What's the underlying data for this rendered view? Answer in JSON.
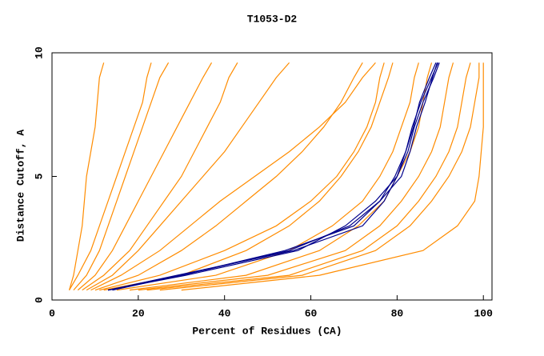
{
  "chart_data": {
    "type": "line",
    "title": "T1053-D2",
    "x_label": "Percent of Residues (CA)",
    "y_label": "Distance Cutoff, A",
    "xlim": [
      0,
      102
    ],
    "ylim": [
      0,
      10
    ],
    "xticks": [
      0,
      20,
      40,
      60,
      80,
      100
    ],
    "yticks": [
      0,
      5,
      10
    ],
    "series": [
      {
        "color": "#ff8c00",
        "x": [
          4,
          5,
          6,
          7,
          7.5,
          8,
          9,
          10,
          10.5,
          11,
          12
        ],
        "values": [
          0.4,
          1,
          2,
          3,
          4,
          5,
          6,
          7,
          8,
          9,
          9.6
        ]
      },
      {
        "color": "#ff8c00",
        "x": [
          5,
          8,
          11,
          13,
          15,
          17,
          19,
          21,
          23,
          25,
          27
        ],
        "values": [
          0.4,
          1,
          2,
          3,
          4,
          5,
          6,
          7,
          8,
          9,
          9.6
        ]
      },
      {
        "color": "#ff8c00",
        "x": [
          6,
          10,
          14,
          17,
          20,
          23,
          26,
          29,
          32,
          35,
          37
        ],
        "values": [
          0.4,
          1,
          2,
          3,
          4,
          5,
          6,
          7,
          8,
          9,
          9.6
        ]
      },
      {
        "color": "#ff8c00",
        "x": [
          8,
          14,
          20,
          25,
          30,
          35,
          40,
          44,
          48,
          52,
          55
        ],
        "values": [
          0.4,
          1,
          2,
          3,
          4,
          5,
          6,
          7,
          8,
          9,
          9.6
        ]
      },
      {
        "color": "#ff8c00",
        "x": [
          10,
          20,
          30,
          38,
          45,
          52,
          58,
          63,
          67,
          70,
          72
        ],
        "values": [
          0.4,
          1,
          2,
          3,
          4,
          5,
          6,
          7,
          8,
          9,
          9.6
        ]
      },
      {
        "color": "#ff8c00",
        "x": [
          12,
          30,
          45,
          55,
          62,
          67,
          71,
          74,
          76,
          78,
          79
        ],
        "values": [
          0.4,
          1,
          2,
          3,
          4,
          5,
          6,
          7,
          8,
          9,
          9.6
        ]
      },
      {
        "color": "#ff8c00",
        "x": [
          15,
          38,
          55,
          65,
          72,
          76,
          79,
          81,
          83,
          84,
          85
        ],
        "values": [
          0.4,
          1,
          2,
          3,
          4,
          5,
          6,
          7,
          8,
          9,
          9.6
        ]
      },
      {
        "color": "#ff8c00",
        "x": [
          18,
          45,
          62,
          71,
          77,
          80,
          83,
          85,
          86,
          87,
          88
        ],
        "values": [
          0.4,
          1,
          2,
          3,
          4,
          5,
          6,
          7,
          8,
          9,
          9.6
        ]
      },
      {
        "color": "#ff8c00",
        "x": [
          20,
          50,
          68,
          76,
          81,
          85,
          88,
          90,
          91,
          92,
          93
        ],
        "values": [
          0.4,
          1,
          2,
          3,
          4,
          5,
          6,
          7,
          8,
          9,
          9.6
        ]
      },
      {
        "color": "#ff8c00",
        "x": [
          22,
          55,
          72,
          80,
          85,
          89,
          92,
          94,
          95,
          96,
          97
        ],
        "values": [
          0.4,
          1,
          2,
          3,
          4,
          5,
          6,
          7,
          8,
          9,
          9.6
        ]
      },
      {
        "color": "#ff8c00",
        "x": [
          25,
          58,
          75,
          83,
          88,
          92,
          95,
          97,
          98,
          99,
          99
        ],
        "values": [
          0.4,
          1,
          2,
          3,
          4,
          5,
          6,
          7,
          8,
          9,
          9.6
        ]
      },
      {
        "color": "#ff8c00",
        "x": [
          30,
          62,
          86,
          94,
          98,
          99,
          99.5,
          100,
          100,
          100,
          100
        ],
        "values": [
          0.4,
          1,
          2,
          3,
          4,
          5,
          6,
          7,
          8,
          9,
          9.6
        ]
      },
      {
        "color": "#ff8c00",
        "x": [
          4,
          6,
          9,
          11,
          13,
          15,
          17,
          19,
          21,
          22,
          23
        ],
        "values": [
          0.4,
          1,
          2,
          3,
          4,
          5,
          6,
          7,
          8,
          9,
          9.6
        ]
      },
      {
        "color": "#ff8c00",
        "x": [
          7,
          12,
          18,
          22,
          26,
          30,
          33,
          36,
          39,
          41,
          43
        ],
        "values": [
          0.4,
          1,
          2,
          3,
          4,
          5,
          6,
          7,
          8,
          9,
          9.6
        ]
      },
      {
        "color": "#ff8c00",
        "x": [
          9,
          16,
          25,
          32,
          39,
          47,
          55,
          62,
          68,
          72,
          75
        ],
        "values": [
          0.4,
          1,
          2,
          3,
          4,
          5,
          6,
          7,
          8,
          9,
          9.6
        ]
      },
      {
        "color": "#ff8c00",
        "x": [
          11,
          25,
          40,
          52,
          60,
          66,
          70,
          73,
          75,
          76,
          77
        ],
        "values": [
          0.4,
          1,
          2,
          3,
          4,
          5,
          6,
          7,
          8,
          9,
          9.6
        ]
      },
      {
        "color": "#00008b",
        "x": [
          13,
          30,
          55,
          69,
          76,
          79.5,
          82,
          83.5,
          85.5,
          88,
          89.5
        ],
        "values": [
          0.4,
          1,
          2,
          3,
          4,
          5,
          6,
          7,
          8,
          9,
          9.6
        ]
      },
      {
        "color": "#00008b",
        "x": [
          13,
          31,
          57,
          68,
          75,
          80,
          82.5,
          84,
          86,
          88.5,
          89.8
        ],
        "values": [
          0.4,
          1,
          2,
          3,
          4,
          5,
          6,
          7,
          8,
          9,
          9.6
        ]
      },
      {
        "color": "#00008b",
        "x": [
          14,
          30,
          54,
          70,
          76,
          81,
          83,
          84.5,
          86.5,
          88.2,
          89.3
        ],
        "values": [
          0.4,
          1,
          2,
          3,
          4,
          5,
          6,
          7,
          8,
          9,
          9.6
        ]
      },
      {
        "color": "#00008b",
        "x": [
          13,
          29,
          56,
          72,
          77,
          80,
          82,
          83.8,
          85.2,
          87.5,
          89
        ],
        "values": [
          0.4,
          1,
          2,
          3,
          4,
          5,
          6,
          7,
          8,
          9,
          9.6
        ]
      }
    ]
  }
}
